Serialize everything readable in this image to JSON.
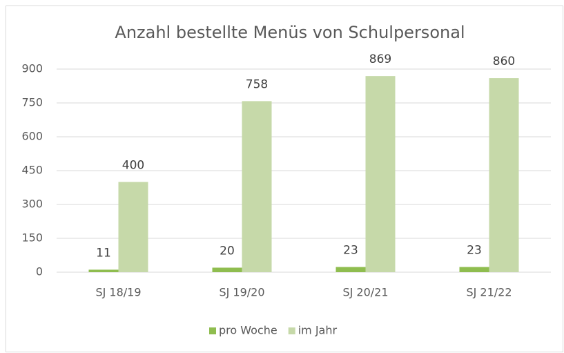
{
  "chart_data": {
    "type": "bar",
    "title": "Anzahl bestellte Menüs von Schulpersonal",
    "categories": [
      "SJ 18/19",
      "SJ 19/20",
      "SJ 20/21",
      "SJ 21/22"
    ],
    "series": [
      {
        "name": "pro Woche",
        "color": "#8fbd4f",
        "values": [
          11,
          20,
          23,
          23
        ]
      },
      {
        "name": "im Jahr",
        "color": "#c6d9a9",
        "values": [
          400,
          758,
          869,
          860
        ]
      }
    ],
    "ylim": [
      0,
      900
    ],
    "yticks": [
      0,
      150,
      300,
      450,
      600,
      750,
      900
    ],
    "grid": true,
    "legend": "bottom"
  }
}
